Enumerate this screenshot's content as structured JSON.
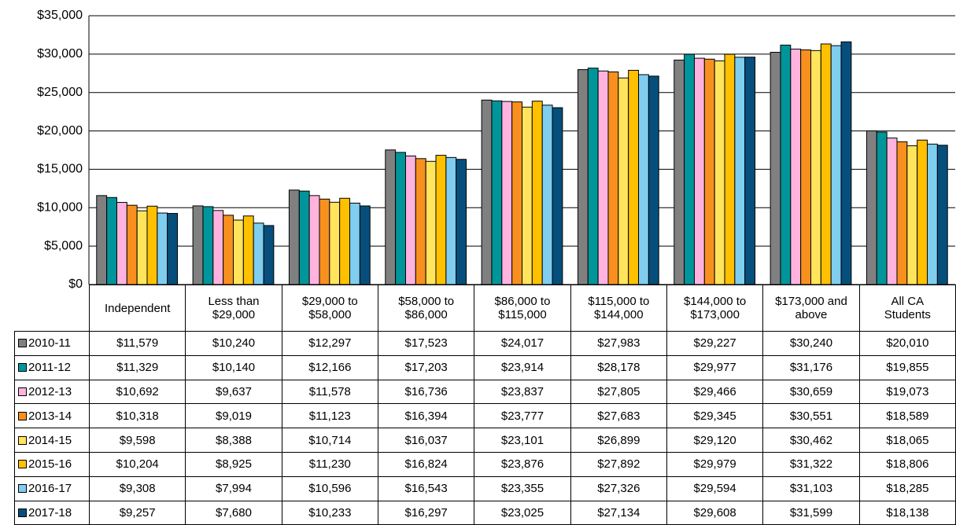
{
  "chart_data": {
    "type": "bar",
    "categories": [
      "Independent",
      "Less than $29,000",
      "$29,000 to $58,000",
      "$58,000 to $86,000",
      "$86,000 to $115,000",
      "$115,000 to $144,000",
      "$144,000 to $173,000",
      "$173,000 and above",
      "All CA Students"
    ],
    "ylim": [
      0,
      35000
    ],
    "yticks": [
      {
        "value": 0,
        "label": "$0"
      },
      {
        "value": 5000,
        "label": "$5,000"
      },
      {
        "value": 10000,
        "label": "$10,000"
      },
      {
        "value": 15000,
        "label": "$15,000"
      },
      {
        "value": 20000,
        "label": "$20,000"
      },
      {
        "value": 25000,
        "label": "$25,000"
      },
      {
        "value": 30000,
        "label": "$30,000"
      },
      {
        "value": 35000,
        "label": "$35,000"
      }
    ],
    "grid": true,
    "series": [
      {
        "name": "2010-11",
        "color": "#808080",
        "values": [
          11579,
          10240,
          12297,
          17523,
          24017,
          27983,
          29227,
          30240,
          20010
        ],
        "value_labels": [
          "$11,579",
          "$10,240",
          "$12,297",
          "$17,523",
          "$24,017",
          "$27,983",
          "$29,227",
          "$30,240",
          "$20,010"
        ]
      },
      {
        "name": "2011-12",
        "color": "#00959a",
        "values": [
          11329,
          10140,
          12166,
          17203,
          23914,
          28178,
          29977,
          31176,
          19855
        ],
        "value_labels": [
          "$11,329",
          "$10,140",
          "$12,166",
          "$17,203",
          "$23,914",
          "$28,178",
          "$29,977",
          "$31,176",
          "$19,855"
        ]
      },
      {
        "name": "2012-13",
        "color": "#ffb3de",
        "values": [
          10692,
          9637,
          11578,
          16736,
          23837,
          27805,
          29466,
          30659,
          19073
        ],
        "value_labels": [
          "$10,692",
          "$9,637",
          "$11,578",
          "$16,736",
          "$23,837",
          "$27,805",
          "$29,466",
          "$30,659",
          "$19,073"
        ]
      },
      {
        "name": "2013-14",
        "color": "#f7901e",
        "values": [
          10318,
          9019,
          11123,
          16394,
          23777,
          27683,
          29345,
          30551,
          18589
        ],
        "value_labels": [
          "$10,318",
          "$9,019",
          "$11,123",
          "$16,394",
          "$23,777",
          "$27,683",
          "$29,345",
          "$30,551",
          "$18,589"
        ]
      },
      {
        "name": "2014-15",
        "color": "#ffe45c",
        "values": [
          9598,
          8388,
          10714,
          16037,
          23101,
          26899,
          29120,
          30462,
          18065
        ],
        "value_labels": [
          "$9,598",
          "$8,388",
          "$10,714",
          "$16,037",
          "$23,101",
          "$26,899",
          "$29,120",
          "$30,462",
          "$18,065"
        ]
      },
      {
        "name": "2015-16",
        "color": "#ffc000",
        "values": [
          10204,
          8925,
          11230,
          16824,
          23876,
          27892,
          29979,
          31322,
          18806
        ],
        "value_labels": [
          "$10,204",
          "$8,925",
          "$11,230",
          "$16,824",
          "$23,876",
          "$27,892",
          "$29,979",
          "$31,322",
          "$18,806"
        ]
      },
      {
        "name": "2016-17",
        "color": "#7fcdef",
        "values": [
          9308,
          7994,
          10596,
          16543,
          23355,
          27326,
          29594,
          31103,
          18285
        ],
        "value_labels": [
          "$9,308",
          "$7,994",
          "$10,596",
          "$16,543",
          "$23,355",
          "$27,326",
          "$29,594",
          "$31,103",
          "$18,285"
        ]
      },
      {
        "name": "2017-18",
        "color": "#064f7c",
        "values": [
          9257,
          7680,
          10233,
          16297,
          23025,
          27134,
          29608,
          31599,
          18138
        ],
        "value_labels": [
          "$9,257",
          "$7,680",
          "$10,233",
          "$16,297",
          "$23,025",
          "$27,134",
          "$29,608",
          "$31,599",
          "$18,138"
        ]
      }
    ]
  }
}
